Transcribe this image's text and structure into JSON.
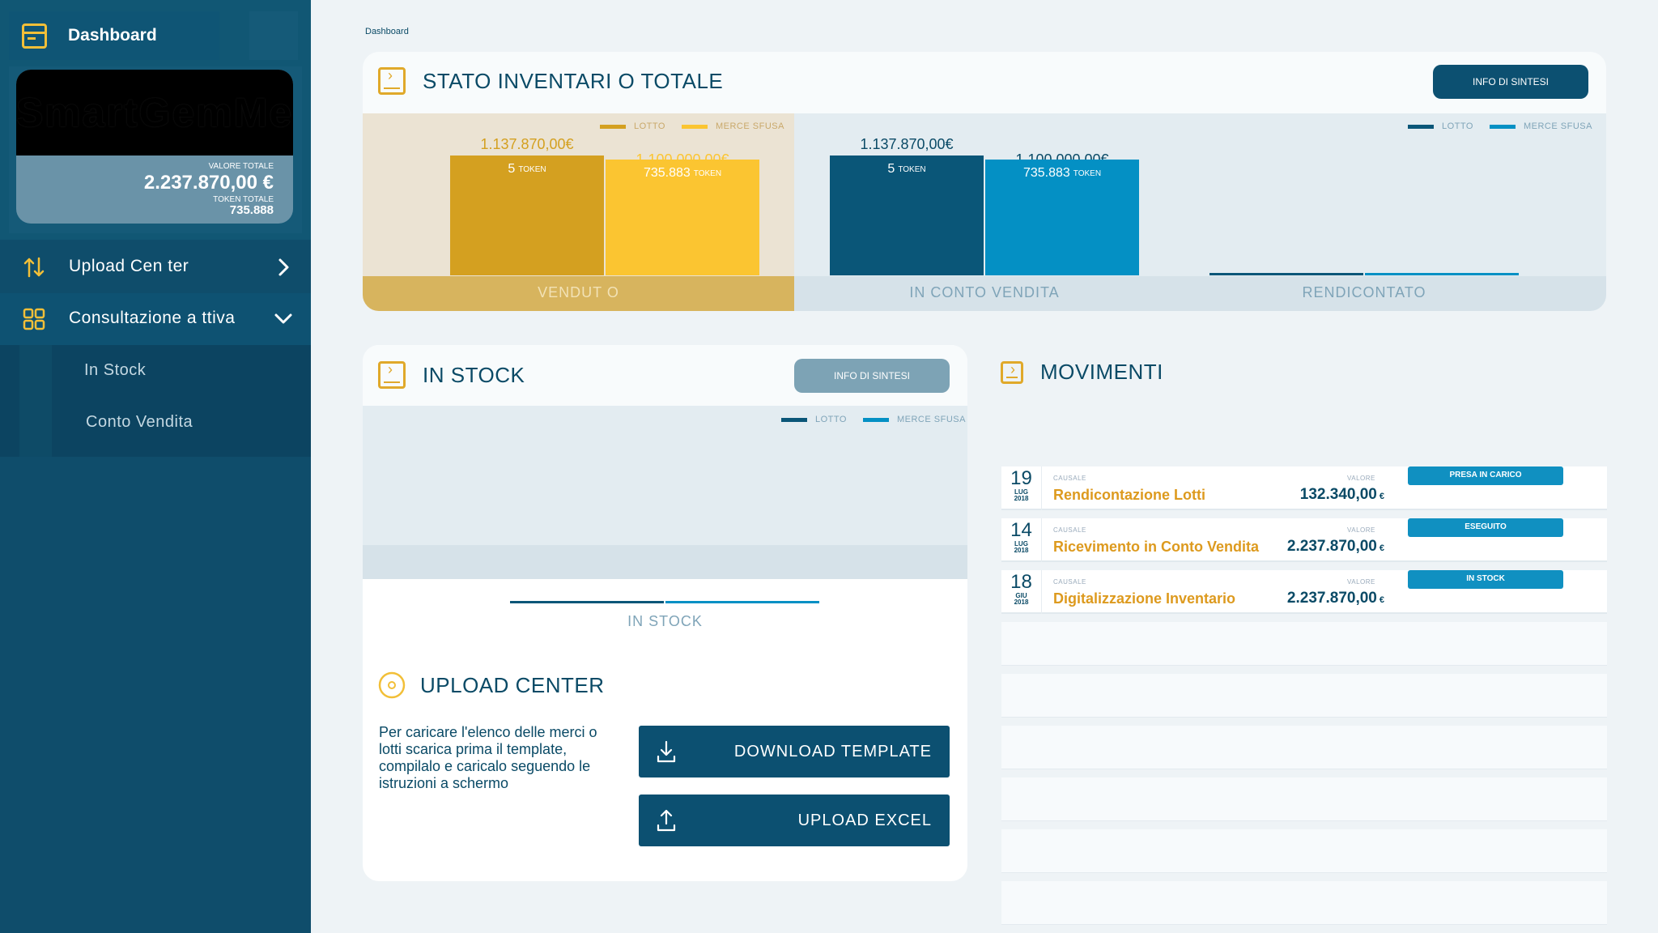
{
  "sidebar": {
    "dashboard_label": "Dashboard",
    "card": {
      "logo_text": "SmartGemMe",
      "total_value_label": "VALORE TOTALE",
      "total_value": "2.237.870,00 €",
      "total_tokens_label": "TOKEN TOTALE",
      "total_tokens": "735.888"
    },
    "nav": [
      {
        "label": "Upload Cen ter",
        "icon": "swap-vertical-icon",
        "chevron": "chevron-right-icon"
      },
      {
        "label": "Consultazione a  ttiva",
        "icon": "grid-icon",
        "chevron": "chevron-down-icon"
      }
    ],
    "submenu": [
      "In Stock",
      "Conto Vendita"
    ]
  },
  "breadcrumb": "Dashboard",
  "stato": {
    "title": "STATO INVENTARI O TOTALE",
    "info_button": "INFO DI SINTESI",
    "legend_lotto": "LOTTO",
    "legend_merce": "MERCE SFUSA",
    "groups": [
      {
        "label": "VENDUT O",
        "lotto_value": "1.137.870,00€",
        "lotto_tokens": "5",
        "merce_value": "1.100.000,00€",
        "merce_tokens": "735.883"
      },
      {
        "label": "IN CONTO VENDITA",
        "lotto_value": "1.137.870,00€",
        "lotto_tokens": "5",
        "merce_value": "1.100.000,00€",
        "merce_tokens": "735.883"
      },
      {
        "label": "RENDICONTATO"
      }
    ],
    "token_unit": "TOKEN"
  },
  "chart_data": {
    "type": "bar",
    "categories": [
      "VENDUT O",
      "IN CONTO VENDITA",
      "RENDICONTATO"
    ],
    "series": [
      {
        "name": "LOTTO",
        "values": [
          1137870,
          1137870,
          0
        ]
      },
      {
        "name": "MERCE SFUSA",
        "values": [
          1100000,
          1100000,
          0
        ]
      }
    ]
  },
  "instock": {
    "title": "IN STOCK",
    "info_button": "INFO DI SINTESI",
    "legend_lotto": "LOTTO",
    "legend_merce": "MERCE SFUSA",
    "axis_label": "IN STOCK"
  },
  "upload": {
    "title": "UPLOAD CENTER",
    "description": "Per caricare l'elenco delle merci o lotti scarica prima il template, compilalo e caricalo seguendo le istruzioni a schermo",
    "download_button": "DOWNLOAD TEMPLATE",
    "upload_button": "UPLOAD EXCEL"
  },
  "movimenti": {
    "title": "MOVIMENTI",
    "causale_label": "CAUSALE",
    "valore_label": "VALORE",
    "currency": "€",
    "rows": [
      {
        "day": "19",
        "month": "LUG",
        "year": "2018",
        "causale": "Rendicontazione Lotti",
        "valore": "132.340,00",
        "status": "PRESA IN CARICO"
      },
      {
        "day": "14",
        "month": "LUG",
        "year": "2018",
        "causale": "Ricevimento in Conto Vendita",
        "valore": "2.237.870,00",
        "status": "ESEGUITO"
      },
      {
        "day": "18",
        "month": "GIU",
        "year": "2018",
        "causale": "Digitalizzazione Inventario",
        "valore": "2.237.870,00",
        "status": "IN STOCK"
      }
    ]
  },
  "colors": {
    "sidebar": "#0f4d6b",
    "accent_gold": "#d4a020",
    "accent_yellow": "#fbc531",
    "navy": "#0a5678",
    "cyan": "#0490c4",
    "status_blue": "#1090c1"
  }
}
